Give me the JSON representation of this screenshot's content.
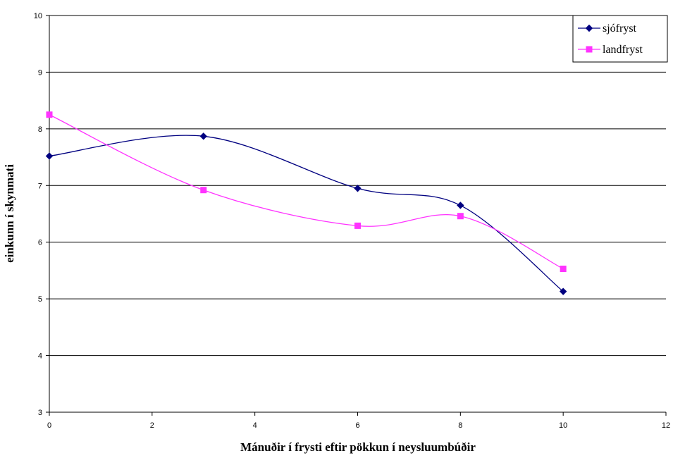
{
  "chart_data": {
    "type": "line",
    "title": "",
    "xlabel": "Mánuðir í frysti eftir pökkun í neysluumbúðir",
    "ylabel": "einkunn í skynmati",
    "xlim": [
      0,
      12
    ],
    "ylim": [
      3,
      10
    ],
    "xticks": [
      "0",
      "2",
      "4",
      "6",
      "8",
      "10",
      "12"
    ],
    "yticks": [
      "3",
      "4",
      "5",
      "6",
      "7",
      "8",
      "9",
      "10"
    ],
    "grid": "horizontal",
    "legend_position": "top-right",
    "smoothed": true,
    "series": [
      {
        "name": "sjófryst",
        "color": "#000080",
        "marker": "diamond",
        "x": [
          0,
          3,
          6,
          8,
          10
        ],
        "y": [
          7.52,
          7.87,
          6.95,
          6.65,
          5.13
        ]
      },
      {
        "name": "landfryst",
        "color": "#FF33FF",
        "marker": "square",
        "x": [
          0,
          3,
          6,
          8,
          10
        ],
        "y": [
          8.25,
          6.92,
          6.29,
          6.46,
          5.53
        ]
      }
    ]
  }
}
